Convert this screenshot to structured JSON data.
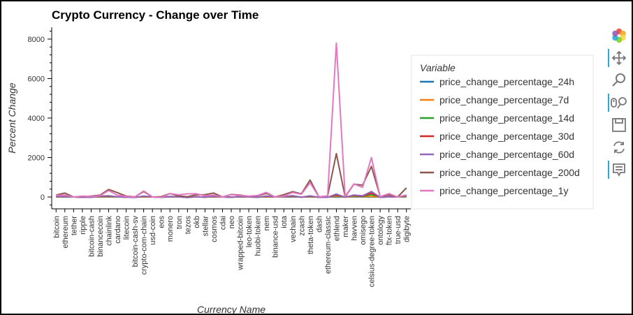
{
  "chart_data": {
    "type": "line",
    "title": "Crypto Currency - Change over Time",
    "xlabel": "Currency Name",
    "ylabel": "Percent Change",
    "ylim": [
      -600,
      8600
    ],
    "yticks": [
      0,
      2000,
      4000,
      6000,
      8000
    ],
    "grid": false,
    "legend_position": "right",
    "legend_title": "Variable",
    "categories": [
      "bitcoin",
      "ethereum",
      "tether",
      "ripple",
      "bitcoin-cash",
      "binancecoin",
      "chainlink",
      "cardano",
      "litecoin",
      "bitcoin-cash-sv",
      "crypto-com-chain",
      "usd-coin",
      "eos",
      "monero",
      "tron",
      "tezos",
      "okb",
      "stellar",
      "cosmos",
      "cdai",
      "neo",
      "wrapped-bitcoin",
      "leo-token",
      "huobi-token",
      "nem",
      "binance-usd",
      "iota",
      "vechain",
      "zcash",
      "theta-token",
      "dash",
      "ethereum-classic",
      "ethlend",
      "maker",
      "havven",
      "omisego",
      "celsius-degree-token",
      "ontology",
      "ftx-token",
      "true-usd",
      "digibyte"
    ],
    "series": [
      {
        "name": "price_change_percentage_24h",
        "color": "#1f77b4",
        "values": [
          1,
          -1,
          0,
          -1,
          -2,
          1,
          2,
          0,
          -1,
          -1,
          3,
          0,
          -2,
          1,
          0,
          -2,
          1,
          -1,
          2,
          0,
          -1,
          1,
          0,
          -1,
          2,
          0,
          1,
          3,
          -1,
          2,
          -2,
          -1,
          4,
          0,
          5,
          2,
          3,
          -1,
          0,
          0,
          4
        ]
      },
      {
        "name": "price_change_percentage_7d",
        "color": "#ff7f0e",
        "values": [
          8,
          5,
          0,
          -4,
          -2,
          10,
          15,
          2,
          -3,
          -6,
          12,
          0,
          -4,
          6,
          2,
          -8,
          4,
          -3,
          10,
          0,
          -2,
          8,
          1,
          -3,
          12,
          0,
          5,
          18,
          -2,
          14,
          -5,
          -3,
          40,
          -1,
          32,
          14,
          28,
          -4,
          2,
          0,
          20
        ]
      },
      {
        "name": "price_change_percentage_14d",
        "color": "#2ca02c",
        "values": [
          12,
          10,
          0,
          -8,
          -5,
          18,
          30,
          5,
          -6,
          -10,
          25,
          0,
          -8,
          12,
          5,
          -15,
          8,
          -6,
          18,
          0,
          -5,
          12,
          2,
          -6,
          25,
          0,
          10,
          35,
          -4,
          28,
          -10,
          -6,
          80,
          -2,
          60,
          30,
          120,
          -8,
          5,
          0,
          35
        ]
      },
      {
        "name": "price_change_percentage_30d",
        "color": "#d62728",
        "values": [
          20,
          18,
          0,
          -10,
          -8,
          25,
          45,
          8,
          -8,
          -15,
          35,
          0,
          -12,
          18,
          8,
          -20,
          12,
          -8,
          25,
          0,
          -8,
          20,
          3,
          -8,
          35,
          0,
          15,
          50,
          -6,
          45,
          -15,
          -10,
          100,
          -5,
          80,
          45,
          200,
          -12,
          8,
          0,
          60
        ]
      },
      {
        "name": "price_change_percentage_60d",
        "color": "#9467bd",
        "values": [
          30,
          28,
          0,
          -15,
          -12,
          40,
          60,
          12,
          -12,
          -25,
          50,
          0,
          -20,
          25,
          10,
          -30,
          18,
          -12,
          40,
          0,
          -12,
          30,
          5,
          -12,
          50,
          0,
          20,
          70,
          -10,
          60,
          -20,
          -15,
          150,
          -8,
          100,
          60,
          280,
          -18,
          10,
          0,
          90
        ]
      },
      {
        "name": "price_change_percentage_200d",
        "color": "#8c564b",
        "values": [
          101,
          199,
          1,
          22,
          49,
          95,
          385,
          220,
          45,
          10,
          275,
          0,
          15,
          175,
          55,
          15,
          110,
          120,
          199,
          2,
          130,
          100,
          30,
          60,
          180,
          0,
          120,
          270,
          160,
          860,
          10,
          50,
          2200,
          5,
          650,
          600,
          1550,
          25,
          100,
          0,
          460
        ]
      },
      {
        "name": "price_change_percentage_1y",
        "color": "#e377c2",
        "values": [
          84,
          102,
          0,
          45,
          31,
          60,
          325,
          95,
          26,
          2,
          310,
          0,
          -25,
          170,
          110,
          160,
          165,
          60,
          100,
          -2,
          115,
          80,
          40,
          75,
          230,
          1,
          50,
          225,
          140,
          720,
          5,
          55,
          7800,
          30,
          665,
          485,
          2000,
          15,
          170,
          -2,
          105
        ]
      }
    ]
  },
  "toolbar": {
    "tools": [
      "bokeh-logo",
      "pan",
      "box-zoom",
      "wheel-zoom",
      "save",
      "reset",
      "hover"
    ]
  }
}
